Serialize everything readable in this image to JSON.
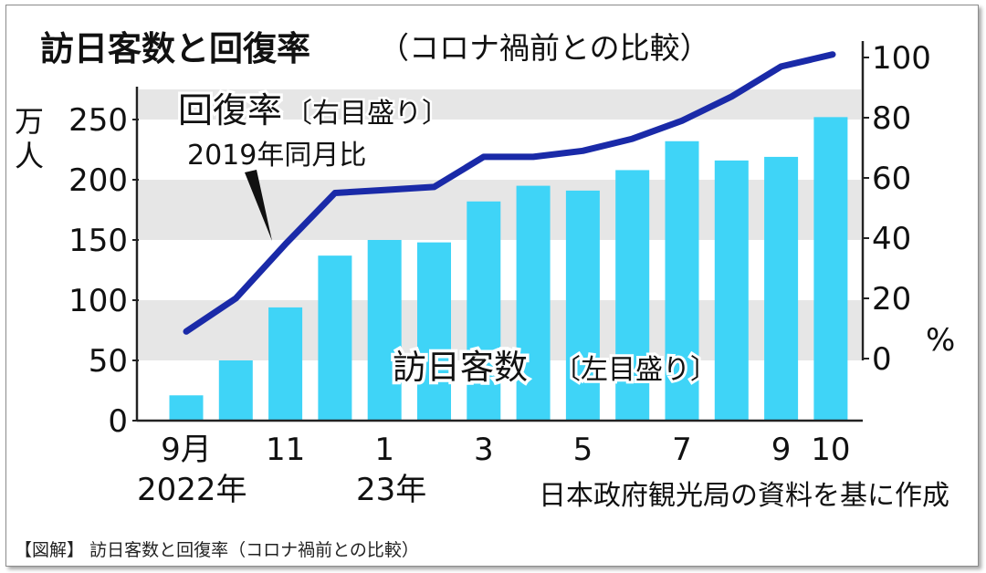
{
  "chart_data": {
    "type": "bar",
    "title": "訪日客数と回復率",
    "subtitle": "（コロナ禍前との比較）",
    "categories": [
      "2022-09",
      "2022-10",
      "2022-11",
      "2022-12",
      "2023-01",
      "2023-02",
      "2023-03",
      "2023-04",
      "2023-05",
      "2023-06",
      "2023-07",
      "2023-08",
      "2023-09",
      "2023-10"
    ],
    "x_tick_labels": [
      "9月",
      "",
      "11",
      "",
      "1",
      "",
      "3",
      "",
      "5",
      "",
      "7",
      "",
      "9",
      "10"
    ],
    "x_year_labels": [
      {
        "label": "2022年",
        "index": 0
      },
      {
        "label": "23年",
        "index": 4
      }
    ],
    "series": [
      {
        "name": "訪日客数〔左目盛り〕",
        "type": "bar",
        "axis": "left",
        "color": "#3fd4f7",
        "values": [
          21,
          50,
          94,
          137,
          150,
          148,
          182,
          195,
          191,
          208,
          232,
          216,
          219,
          252
        ]
      },
      {
        "name": "回復率〔右目盛り〕",
        "note": "2019年同月比",
        "type": "line",
        "axis": "right",
        "color": "#1a2aa8",
        "values": [
          9,
          20,
          38,
          55,
          56,
          57,
          67,
          67,
          69,
          73,
          79,
          87,
          97,
          101
        ]
      }
    ],
    "y_left": {
      "unit": "万人",
      "ticks": [
        0,
        50,
        100,
        150,
        200,
        250
      ],
      "ylim": [
        0,
        275
      ]
    },
    "y_right": {
      "unit": "%",
      "ticks": [
        0,
        20,
        40,
        60,
        80,
        100
      ],
      "ylim": [
        0,
        100
      ]
    },
    "grid": "horizontal bands",
    "source": "日本政府観光局の資料を基に作成"
  },
  "labels": {
    "unit_left_1": "万",
    "unit_left_2": "人",
    "unit_right": "%",
    "line_label": "回復率",
    "line_label_axis": "〔右目盛り〕",
    "line_note": "2019年同月比",
    "bar_label": "訪日客数",
    "bar_label_axis": "〔左目盛り〕"
  },
  "caption": {
    "tag": "図解",
    "text": "訪日客数と回復率（コロナ禍前との比較）"
  }
}
